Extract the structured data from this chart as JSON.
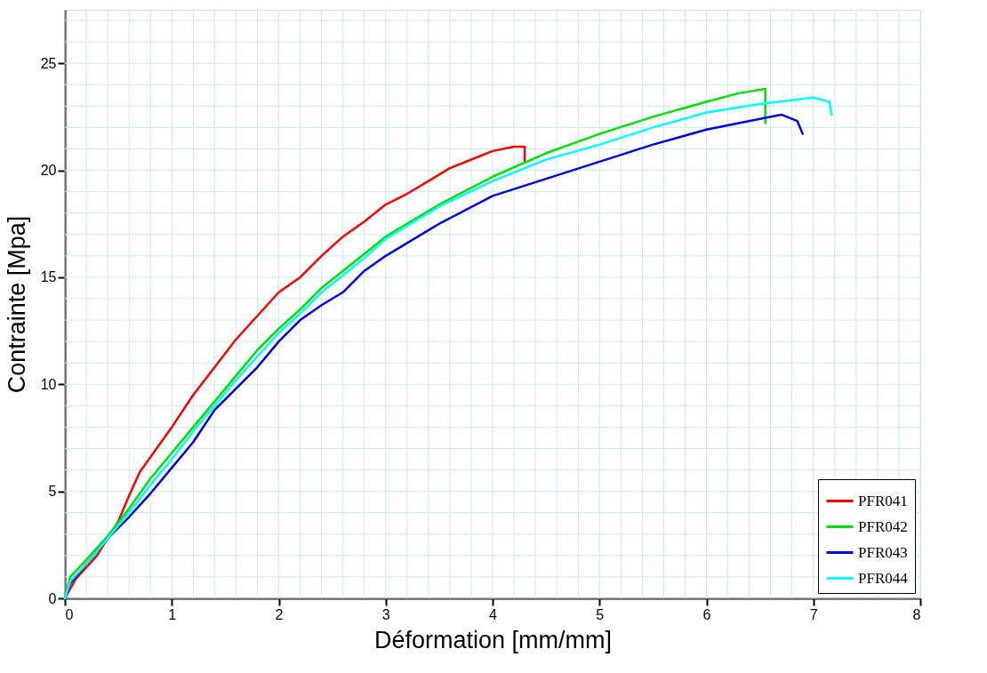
{
  "chart_data": {
    "type": "line",
    "xlabel": "Déformation [mm/mm]",
    "ylabel": "Contrainte [Mpa]",
    "xlim": [
      0,
      8
    ],
    "ylim": [
      0,
      27.5
    ],
    "xticks": [
      0,
      1,
      2,
      3,
      4,
      5,
      6,
      7,
      8
    ],
    "yticks": [
      0,
      5,
      10,
      15,
      20,
      25
    ],
    "grid": true,
    "legend": "bottom right",
    "line_style": "solid",
    "marker": "none",
    "series": [
      {
        "name": "PFR041",
        "color": "#ff0000",
        "x": [
          0,
          0.1,
          0.3,
          0.5,
          0.6,
          0.7,
          0.8,
          1.0,
          1.2,
          1.4,
          1.6,
          1.8,
          2.0,
          2.2,
          2.4,
          2.6,
          2.8,
          3.0,
          3.2,
          3.4,
          3.6,
          3.8,
          4.0,
          4.2,
          4.3,
          4.3
        ],
        "values": [
          0,
          0.9,
          2.0,
          3.6,
          4.8,
          5.9,
          6.6,
          8.0,
          9.5,
          10.8,
          12.1,
          13.2,
          14.3,
          15.0,
          16.0,
          16.9,
          17.6,
          18.4,
          18.9,
          19.5,
          20.1,
          20.5,
          20.9,
          21.1,
          21.1,
          20.4
        ]
      },
      {
        "name": "PFR042",
        "color": "#00e000",
        "x": [
          0,
          0.05,
          0.2,
          0.4,
          0.6,
          0.8,
          1.0,
          1.2,
          1.4,
          1.6,
          1.8,
          2.0,
          2.2,
          2.4,
          2.6,
          2.8,
          3.0,
          3.5,
          4.0,
          4.5,
          5.0,
          5.5,
          6.0,
          6.3,
          6.55,
          6.55
        ],
        "values": [
          0,
          1.0,
          1.8,
          2.9,
          4.2,
          5.6,
          6.8,
          8.0,
          9.2,
          10.4,
          11.6,
          12.6,
          13.5,
          14.5,
          15.3,
          16.1,
          16.9,
          18.4,
          19.7,
          20.8,
          21.7,
          22.5,
          23.2,
          23.6,
          23.8,
          22.2
        ]
      },
      {
        "name": "PFR043",
        "color": "#0000ee",
        "x": [
          0,
          0.05,
          0.2,
          0.4,
          0.6,
          0.8,
          1.0,
          1.2,
          1.4,
          1.6,
          1.8,
          2.0,
          2.2,
          2.4,
          2.6,
          2.8,
          3.0,
          3.5,
          4.0,
          4.5,
          5.0,
          5.5,
          6.0,
          6.5,
          6.7,
          6.85,
          6.9
        ],
        "values": [
          0,
          0.7,
          1.6,
          2.8,
          3.8,
          4.9,
          6.1,
          7.3,
          8.8,
          9.8,
          10.8,
          12.0,
          13.0,
          13.7,
          14.3,
          15.3,
          16.0,
          17.5,
          18.8,
          19.6,
          20.4,
          21.2,
          21.9,
          22.4,
          22.6,
          22.3,
          21.7
        ]
      },
      {
        "name": "PFR044",
        "color": "#00ffff",
        "x": [
          0,
          0.05,
          0.2,
          0.4,
          0.6,
          0.8,
          1.0,
          1.2,
          1.4,
          1.6,
          1.8,
          2.0,
          2.2,
          2.4,
          2.6,
          2.8,
          3.0,
          3.5,
          4.0,
          4.5,
          5.0,
          5.5,
          6.0,
          6.5,
          7.0,
          7.15,
          7.17
        ],
        "values": [
          0,
          0.8,
          1.6,
          2.8,
          4.0,
          5.3,
          6.5,
          7.8,
          9.0,
          10.2,
          11.3,
          12.4,
          13.3,
          14.3,
          15.1,
          15.9,
          16.8,
          18.3,
          19.5,
          20.5,
          21.2,
          22.0,
          22.7,
          23.1,
          23.4,
          23.2,
          22.6
        ]
      }
    ]
  }
}
